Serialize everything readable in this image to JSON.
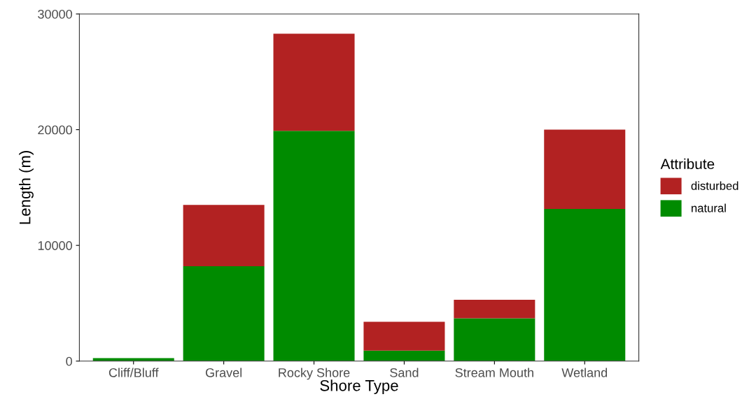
{
  "chart_data": {
    "type": "bar",
    "stacked": true,
    "xlabel": "Shore Type",
    "ylabel": "Length (m)",
    "legend_title": "Attribute",
    "legend": "right",
    "categories": [
      "Cliff/Bluff",
      "Gravel",
      "Rocky Shore",
      "Sand",
      "Stream Mouth",
      "Wetland"
    ],
    "series": [
      {
        "name": "natural",
        "color": "#008b00",
        "values": [
          250,
          8200,
          19900,
          900,
          3700,
          13150
        ]
      },
      {
        "name": "disturbed",
        "color": "#b22222",
        "values": [
          0,
          5300,
          8400,
          2500,
          1600,
          6850
        ]
      }
    ],
    "ylim": [
      0,
      30000
    ],
    "yticks": [
      0,
      10000,
      20000,
      30000
    ],
    "grid": false
  }
}
